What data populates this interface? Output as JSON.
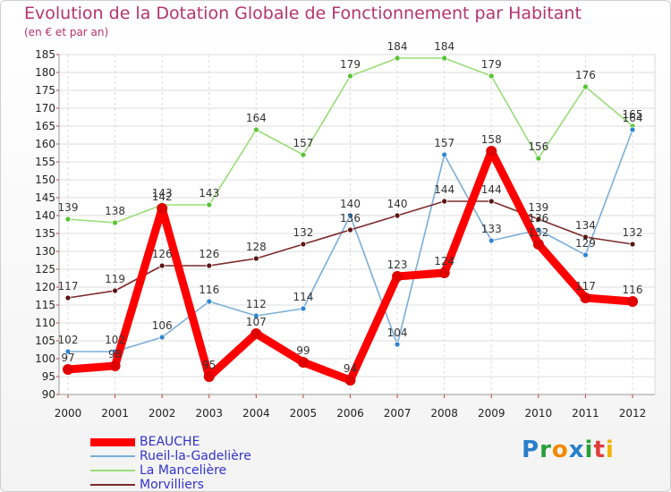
{
  "chart_data": {
    "type": "line",
    "title": "Evolution de la Dotation Globale de Fonctionnement par Habitant",
    "subtitle": "(en € et par an)",
    "xlabel": "",
    "ylabel": "",
    "x": [
      "2000",
      "2001",
      "2002",
      "2003",
      "2004",
      "2005",
      "2006",
      "2007",
      "2008",
      "2009",
      "2010",
      "2011",
      "2012"
    ],
    "ylim": [
      90,
      185
    ],
    "yticks": [
      "90",
      "95",
      "100",
      "105",
      "110",
      "115",
      "120",
      "125",
      "130",
      "135",
      "140",
      "145",
      "150",
      "155",
      "160",
      "165",
      "170",
      "175",
      "180",
      "185"
    ],
    "grid": true,
    "legend_position": "bottom-left",
    "series": [
      {
        "name": "BEAUCHE",
        "color": "#ff0000",
        "marker": "#e00000",
        "values": [
          97,
          98,
          142,
          95,
          107,
          99,
          94,
          123,
          124,
          158,
          132,
          117,
          116
        ],
        "labels": [
          "97",
          "98",
          "142",
          "95",
          "107",
          "99",
          "94",
          "123",
          "124",
          "158",
          "132",
          "117",
          "116"
        ]
      },
      {
        "name": "Rueil-la-Gadelière",
        "color": "#7aaed8",
        "marker": "#2f86d0",
        "values": [
          102,
          102,
          106,
          116,
          112,
          114,
          140,
          104,
          157,
          133,
          136,
          129,
          164
        ],
        "labels": [
          "102",
          "102",
          "106",
          "116",
          "112",
          "114",
          "140",
          "104",
          "157",
          "133",
          "136",
          "129",
          "164"
        ]
      },
      {
        "name": "La Mancelière",
        "color": "#99dd77",
        "marker": "#55c532",
        "values": [
          139,
          138,
          143,
          143,
          164,
          157,
          179,
          184,
          184,
          179,
          156,
          176,
          165
        ],
        "labels": [
          "139",
          "138",
          "143",
          "143",
          "164",
          "157",
          "179",
          "184",
          "184",
          "179",
          "156",
          "176",
          "165"
        ]
      },
      {
        "name": "Morvilliers",
        "color": "#7a2a2a",
        "marker": "#5a1515",
        "values": [
          117,
          119,
          126,
          126,
          128,
          132,
          136,
          140,
          144,
          144,
          139,
          134,
          132
        ],
        "labels": [
          "117",
          "119",
          "126",
          "126",
          "128",
          "132",
          "136",
          "140",
          "144",
          "144",
          "139",
          "134",
          "132"
        ]
      }
    ]
  },
  "branding": {
    "logo_letters": [
      "P",
      "r",
      "o",
      "x",
      "i",
      "t",
      "i"
    ],
    "logo_colors": [
      "#2a7fc9",
      "#2a9d3a",
      "#f08a00",
      "#2a7fc9",
      "#2a9d3a",
      "#e03c3c",
      "#f0b000"
    ]
  }
}
